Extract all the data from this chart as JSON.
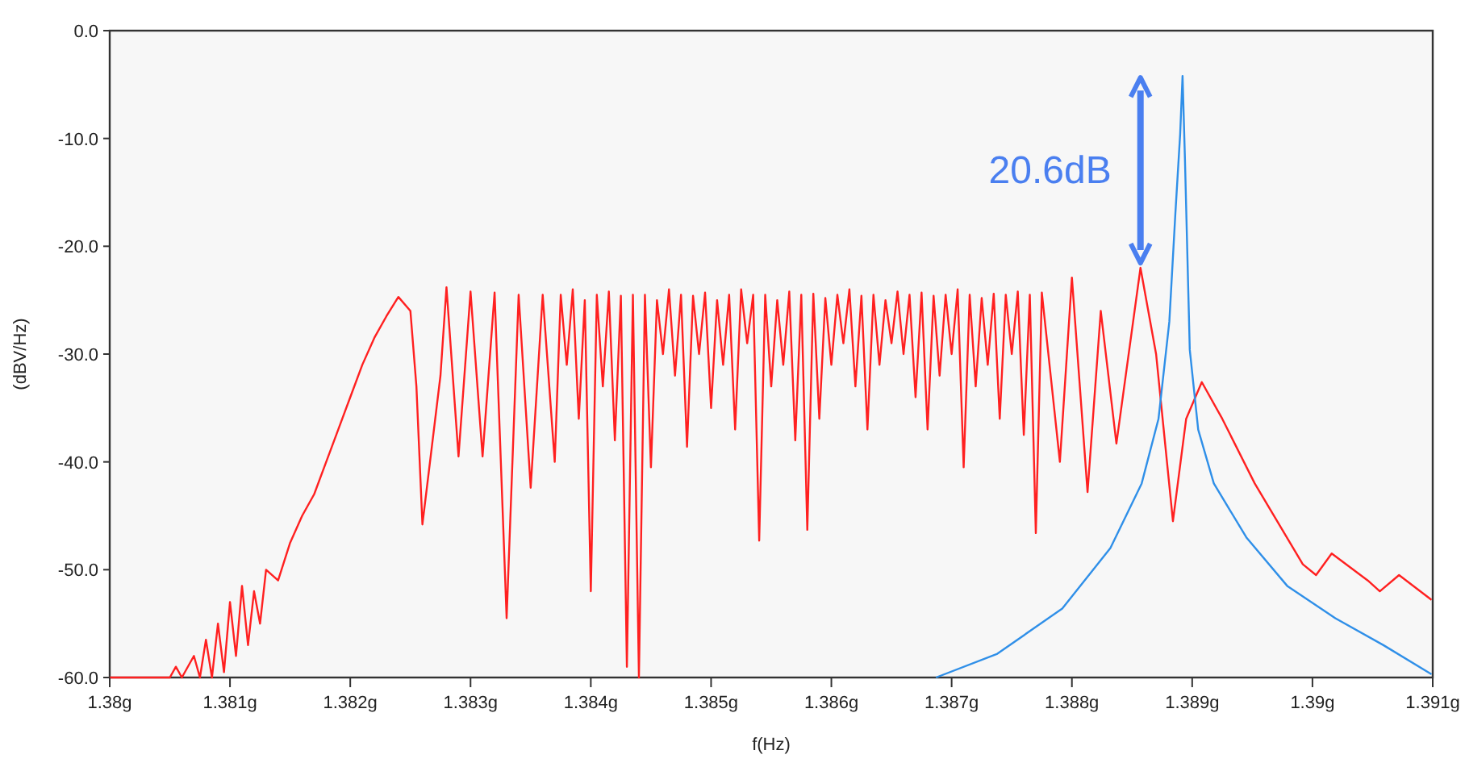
{
  "chart_data": {
    "type": "line",
    "xlabel": "f(Hz)",
    "ylabel": "(dBV/Hz)",
    "xlim": [
      1.38,
      1.391
    ],
    "ylim": [
      -60,
      0
    ],
    "xticks": [
      {
        "value": 1.38,
        "label": "1.38g"
      },
      {
        "value": 1.381,
        "label": "1.381g"
      },
      {
        "value": 1.382,
        "label": "1.382g"
      },
      {
        "value": 1.383,
        "label": "1.383g"
      },
      {
        "value": 1.384,
        "label": "1.384g"
      },
      {
        "value": 1.385,
        "label": "1.385g"
      },
      {
        "value": 1.386,
        "label": "1.386g"
      },
      {
        "value": 1.387,
        "label": "1.387g"
      },
      {
        "value": 1.388,
        "label": "1.388g"
      },
      {
        "value": 1.389,
        "label": "1.389g"
      },
      {
        "value": 1.39,
        "label": "1.39g"
      },
      {
        "value": 1.391,
        "label": "1.391g"
      }
    ],
    "yticks": [
      {
        "value": 0,
        "label": "0.0"
      },
      {
        "value": -10,
        "label": "-10.0"
      },
      {
        "value": -20,
        "label": "-20.0"
      },
      {
        "value": -30,
        "label": "-30.0"
      },
      {
        "value": -40,
        "label": "-40.0"
      },
      {
        "value": -50,
        "label": "-50.0"
      },
      {
        "value": -60,
        "label": "-60.0"
      }
    ],
    "grid": false,
    "marker": "none",
    "line_style": "solid",
    "annotations": [
      {
        "text": "20.6dB",
        "x": 1.38857,
        "y": -22
      }
    ],
    "series": [
      {
        "color": "#ff2020",
        "x": [
          1.38,
          1.3805,
          1.38055,
          1.3806,
          1.3807,
          1.38075,
          1.3808,
          1.38085,
          1.3809,
          1.38095,
          1.381,
          1.38105,
          1.3811,
          1.38115,
          1.3812,
          1.38125,
          1.3813,
          1.3814,
          1.3815,
          1.3816,
          1.3817,
          1.3818,
          1.3819,
          1.382,
          1.3821,
          1.3822,
          1.3823,
          1.3824,
          1.3825,
          1.38255,
          1.3826,
          1.38275,
          1.3828,
          1.3829,
          1.383,
          1.3831,
          1.3832,
          1.3833,
          1.3834,
          1.3835,
          1.3836,
          1.3837,
          1.38375,
          1.3838,
          1.38385,
          1.3839,
          1.38395,
          1.384,
          1.38405,
          1.3841,
          1.38415,
          1.3842,
          1.38425,
          1.3843,
          1.38435,
          1.3844,
          1.38445,
          1.3845,
          1.38455,
          1.3846,
          1.38465,
          1.3847,
          1.38475,
          1.3848,
          1.38485,
          1.3849,
          1.38495,
          1.385,
          1.38505,
          1.3851,
          1.38515,
          1.3852,
          1.38525,
          1.3853,
          1.38535,
          1.3854,
          1.38545,
          1.3855,
          1.38555,
          1.3856,
          1.38565,
          1.3857,
          1.38575,
          1.3858,
          1.38585,
          1.3859,
          1.38595,
          1.386,
          1.38605,
          1.3861,
          1.38615,
          1.3862,
          1.38625,
          1.3863,
          1.38635,
          1.3864,
          1.38645,
          1.3865,
          1.38655,
          1.3866,
          1.38665,
          1.3867,
          1.38675,
          1.3868,
          1.38685,
          1.3869,
          1.38695,
          1.387,
          1.38705,
          1.3871,
          1.38715,
          1.3872,
          1.38725,
          1.3873,
          1.38735,
          1.3874,
          1.38745,
          1.3875,
          1.38755,
          1.3876,
          1.38765,
          1.3877,
          1.38775,
          1.3879,
          1.388,
          1.38813,
          1.38824,
          1.38837,
          1.38857,
          1.3887,
          1.38884,
          1.38895,
          1.38908,
          1.38925,
          1.38952,
          1.38992,
          1.39003,
          1.39016,
          1.39046,
          1.39056,
          1.39072,
          1.39099
        ],
        "values": [
          -60,
          -60,
          -59,
          -60,
          -58,
          -60,
          -56.5,
          -60,
          -55,
          -59.5,
          -53,
          -58,
          -51.5,
          -57,
          -52,
          -55,
          -50,
          -51,
          -47.5,
          -45,
          -43,
          -40,
          -37,
          -34,
          -31,
          -28.5,
          -26.5,
          -24.7,
          -26,
          -33,
          -45.8,
          -32,
          -23.8,
          -39.5,
          -24.2,
          -39.5,
          -24.3,
          -54.5,
          -24.5,
          -42.4,
          -24.5,
          -40,
          -24.5,
          -31,
          -24,
          -36,
          -25,
          -52,
          -24.5,
          -33,
          -24.2,
          -38,
          -24.6,
          -59,
          -24.5,
          -60,
          -24.5,
          -40.5,
          -25,
          -30,
          -24,
          -32,
          -24.5,
          -38.6,
          -24.6,
          -30,
          -24.3,
          -35,
          -25,
          -31,
          -24.5,
          -37,
          -24,
          -29,
          -24.5,
          -47.3,
          -24.5,
          -33,
          -25,
          -31,
          -24.2,
          -38,
          -24.5,
          -46.3,
          -24.4,
          -36,
          -24.8,
          -31,
          -24.5,
          -29,
          -24,
          -33,
          -24.6,
          -37,
          -24.5,
          -31,
          -25,
          -29,
          -24.2,
          -30,
          -24.5,
          -34,
          -24.3,
          -37,
          -24.6,
          -32,
          -24.5,
          -30,
          -24,
          -40.5,
          -24.5,
          -33,
          -24.8,
          -31,
          -24.4,
          -36,
          -24.5,
          -30,
          -24.2,
          -37.5,
          -24.5,
          -46.6,
          -24.3,
          -40,
          -22.9,
          -42.8,
          -26,
          -38.3,
          -22,
          -30,
          -45.5,
          -36,
          -32.6,
          -36,
          -42,
          -49.5,
          -50.5,
          -48.5,
          -51,
          -52,
          -50.5,
          -52.8
        ]
      },
      {
        "color": "#2f8fe8",
        "x": [
          1.38687,
          1.38738,
          1.38792,
          1.38832,
          1.38858,
          1.38872,
          1.38881,
          1.38886,
          1.3889,
          1.38892,
          1.38894,
          1.38898,
          1.38905,
          1.38918,
          1.38945,
          1.38979,
          1.39019,
          1.39059,
          1.39099
        ],
        "values": [
          -60,
          -57.8,
          -53.6,
          -48,
          -42,
          -36,
          -27,
          -17,
          -9.6,
          -4.2,
          -12,
          -29.6,
          -37,
          -42,
          -47,
          -51.5,
          -54.5,
          -57,
          -59.7
        ]
      }
    ]
  }
}
